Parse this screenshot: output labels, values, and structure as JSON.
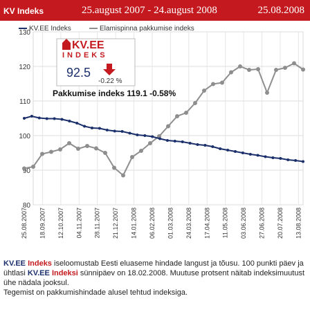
{
  "header": {
    "title": "KV Indeks",
    "range": "25.august 2007 - 24.august 2008",
    "date": "25.08.2008"
  },
  "badge": {
    "logo_main": "KV.EE",
    "logo_sub": "INDEKS",
    "value": "92.5",
    "change": "-0.22 %"
  },
  "annotation": "Pakkumise indeks 119.1 -0.58%",
  "colors": {
    "brand_red": "#c41a1f",
    "series1": "#1b2f6b",
    "series2": "#8e8e8e"
  },
  "footer": {
    "p1_a": "KV.EE",
    "p1_b": "Indeks",
    "p1_c": " iseloomustab Eesti eluaseme hindade langust ja tõusu. 100 punkti päev ja ühtlasi ",
    "p1_d": "KV.EE",
    "p1_e": "Indeksi",
    "p1_f": " sünnipäev on 18.02.2008. Muutuse protsent näitab indeksimuutust ühe nädala jooksul.",
    "p2": "Tegemist on pakkumishindade alusel tehtud indeksiga."
  },
  "chart_data": {
    "type": "line",
    "ylim": [
      80,
      130
    ],
    "yticks": [
      80,
      90,
      100,
      110,
      120,
      130
    ],
    "grid": true,
    "legend_position": "top-left",
    "xticks": [
      "25.08.2007",
      "18.09.2007",
      "12.10.2007",
      "04.11.2007",
      "28.11.2007",
      "21.12.2007",
      "14.01.2008",
      "06.02.2008",
      "01.03.2008",
      "24.03.2008",
      "17.04.2008",
      "11.05.2008",
      "03.06.2008",
      "27.06.2008",
      "20.07.2008",
      "13.08.2008"
    ],
    "series": [
      {
        "name": "KV.EE Indeks",
        "values": [
          105.0,
          105.6,
          105.1,
          104.9,
          104.9,
          104.7,
          104.2,
          103.6,
          102.7,
          102.2,
          102.1,
          101.6,
          101.3,
          101.2,
          100.7,
          100.2,
          100.0,
          99.7,
          99.1,
          98.6,
          98.4,
          98.2,
          97.8,
          97.4,
          97.2,
          96.8,
          96.2,
          95.8,
          95.4,
          95.0,
          94.6,
          94.3,
          93.9,
          93.6,
          93.4,
          93.0,
          92.8,
          92.5
        ]
      },
      {
        "name": "Elamispinna pakkumise indeks",
        "values": [
          90.5,
          91.0,
          94.7,
          95.3,
          96.0,
          97.8,
          96.2,
          97.0,
          96.3,
          95.0,
          90.7,
          88.5,
          93.8,
          95.6,
          97.8,
          99.8,
          102.7,
          105.6,
          106.6,
          109.4,
          113.0,
          114.9,
          115.3,
          118.3,
          120.0,
          119.0,
          119.2,
          112.4,
          119.0,
          119.6,
          120.9,
          119.1
        ]
      }
    ]
  }
}
